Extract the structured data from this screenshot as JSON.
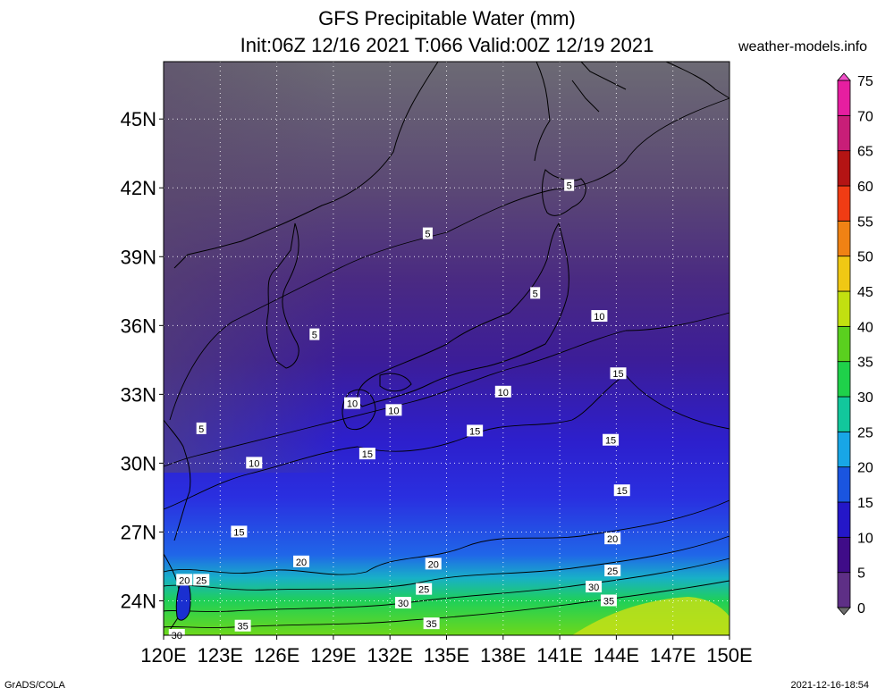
{
  "title": {
    "line1": "GFS Precipitable Water (mm)",
    "line2": "Init:06Z 12/16 2021 T:066 Valid:00Z 12/19 2021"
  },
  "site": "weather-models.info",
  "footer": {
    "left": "GrADS/COLA",
    "right": "2021-12-16-18:54"
  },
  "map": {
    "lon_range": [
      120,
      150
    ],
    "lat_range": [
      22.5,
      47.5
    ],
    "lon_ticks": [
      "120E",
      "123E",
      "126E",
      "129E",
      "132E",
      "135E",
      "138E",
      "141E",
      "144E",
      "147E",
      "150E"
    ],
    "lat_ticks": [
      "24N",
      "27N",
      "30N",
      "33N",
      "36N",
      "39N",
      "42N",
      "45N"
    ],
    "lat_tick_values": [
      24,
      27,
      30,
      33,
      36,
      39,
      42,
      45
    ],
    "lon_tick_values": [
      120,
      123,
      126,
      129,
      132,
      135,
      138,
      141,
      144,
      147,
      150
    ]
  },
  "colorbar": {
    "labels": [
      "0",
      "5",
      "10",
      "15",
      "20",
      "25",
      "30",
      "35",
      "40",
      "45",
      "50",
      "55",
      "60",
      "65",
      "70",
      "75"
    ],
    "colors": [
      "#6e6e6e",
      "#5e2f86",
      "#3f0c88",
      "#2417c8",
      "#1a55e0",
      "#18a6e6",
      "#12c79c",
      "#1fd14a",
      "#5ad01f",
      "#c2e010",
      "#f0c814",
      "#f08214",
      "#f03c14",
      "#b41414",
      "#c81e78",
      "#e61ea0",
      "#f050c8"
    ]
  },
  "contour_labels": [
    {
      "text": "5",
      "lon": 141.5,
      "lat": 42.1
    },
    {
      "text": "5",
      "lon": 134.0,
      "lat": 40.0
    },
    {
      "text": "5",
      "lon": 139.7,
      "lat": 37.4
    },
    {
      "text": "5",
      "lon": 128.0,
      "lat": 35.6
    },
    {
      "text": "5",
      "lon": 122.0,
      "lat": 31.5
    },
    {
      "text": "10",
      "lon": 143.1,
      "lat": 36.4
    },
    {
      "text": "10",
      "lon": 130.0,
      "lat": 32.6
    },
    {
      "text": "10",
      "lon": 132.2,
      "lat": 32.3
    },
    {
      "text": "10",
      "lon": 138.0,
      "lat": 33.1
    },
    {
      "text": "10",
      "lon": 124.8,
      "lat": 30.0
    },
    {
      "text": "15",
      "lon": 144.1,
      "lat": 33.9
    },
    {
      "text": "15",
      "lon": 136.5,
      "lat": 31.4
    },
    {
      "text": "15",
      "lon": 130.8,
      "lat": 30.4
    },
    {
      "text": "15",
      "lon": 143.7,
      "lat": 31.0
    },
    {
      "text": "15",
      "lon": 144.3,
      "lat": 28.8
    },
    {
      "text": "15",
      "lon": 124.0,
      "lat": 27.0
    },
    {
      "text": "20",
      "lon": 143.8,
      "lat": 26.7
    },
    {
      "text": "20",
      "lon": 134.3,
      "lat": 25.6
    },
    {
      "text": "20",
      "lon": 127.3,
      "lat": 25.7
    },
    {
      "text": "20",
      "lon": 121.1,
      "lat": 24.9
    },
    {
      "text": "25",
      "lon": 122.0,
      "lat": 24.9
    },
    {
      "text": "25",
      "lon": 143.8,
      "lat": 25.3
    },
    {
      "text": "25",
      "lon": 133.8,
      "lat": 24.5
    },
    {
      "text": "30",
      "lon": 142.8,
      "lat": 24.6
    },
    {
      "text": "30",
      "lon": 132.7,
      "lat": 23.9
    },
    {
      "text": "30",
      "lon": 120.7,
      "lat": 22.5
    },
    {
      "text": "35",
      "lon": 143.6,
      "lat": 24.0
    },
    {
      "text": "35",
      "lon": 124.2,
      "lat": 22.9
    },
    {
      "text": "35",
      "lon": 134.2,
      "lat": 23.0
    }
  ]
}
